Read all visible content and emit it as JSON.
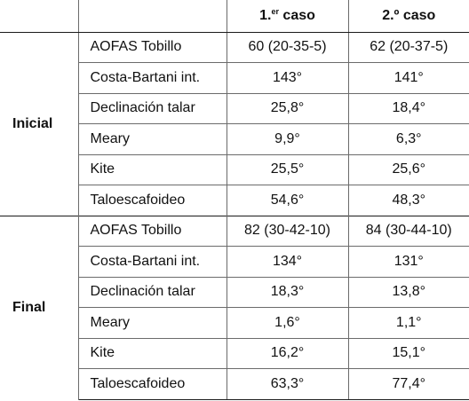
{
  "header": {
    "case1_main": "1.",
    "case1_sup": "er",
    "case1_rest": " caso",
    "case2": "2.º caso"
  },
  "groups": {
    "initial": {
      "label": "Inicial",
      "rows": [
        {
          "param": "AOFAS Tobillo",
          "case1": "60 (20-35-5)",
          "case2": "62 (20-37-5)"
        },
        {
          "param": "Costa-Bartani int.",
          "case1": "143°",
          "case2": "141°"
        },
        {
          "param": "Declinación talar",
          "case1": "25,8°",
          "case2": "18,4°"
        },
        {
          "param": "Meary",
          "case1": "9,9°",
          "case2": "6,3°"
        },
        {
          "param": "Kite",
          "case1": "25,5°",
          "case2": "25,6°"
        },
        {
          "param": "Taloescafoideo",
          "case1": "54,6°",
          "case2": "48,3°"
        }
      ]
    },
    "final": {
      "label": "Final",
      "rows": [
        {
          "param": "AOFAS Tobillo",
          "case1": "82 (30-42-10)",
          "case2": "84 (30-44-10)"
        },
        {
          "param": "Costa-Bartani int.",
          "case1": "134°",
          "case2": "131°"
        },
        {
          "param": "Declinación talar",
          "case1": "18,3°",
          "case2": "13,8°"
        },
        {
          "param": "Meary",
          "case1": "1,6°",
          "case2": "1,1°"
        },
        {
          "param": "Kite",
          "case1": "16,2°",
          "case2": "15,1°"
        },
        {
          "param": "Taloescafoideo",
          "case1": "63,3°",
          "case2": "77,4°"
        }
      ]
    }
  }
}
